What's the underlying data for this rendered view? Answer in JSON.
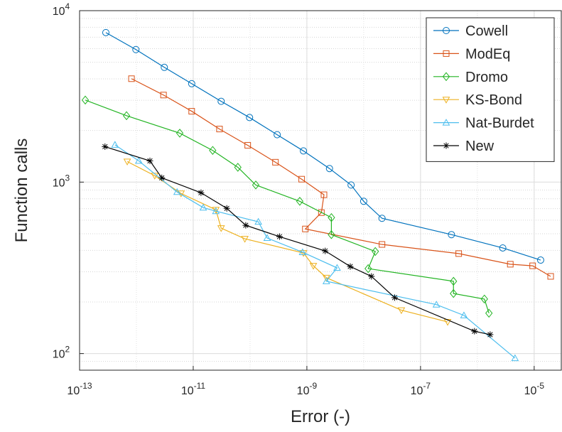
{
  "chart_data": {
    "type": "line",
    "xlabel": "Error (-)",
    "ylabel": "Function calls",
    "xscale": "log",
    "yscale": "log",
    "xlim": [
      1e-13,
      3e-05
    ],
    "ylim": [
      80,
      10000
    ],
    "xticks": [
      {
        "value": 1e-13,
        "label": "10^-13"
      },
      {
        "value": 1e-11,
        "label": "10^-11"
      },
      {
        "value": 1e-09,
        "label": "10^-9"
      },
      {
        "value": 1e-07,
        "label": "10^-7"
      },
      {
        "value": 1e-05,
        "label": "10^-5"
      }
    ],
    "yticks": [
      {
        "value": 100,
        "label": "10^2"
      },
      {
        "value": 1000,
        "label": "10^3"
      },
      {
        "value": 10000,
        "label": "10^4"
      }
    ],
    "grid": true,
    "minor_grid": true,
    "legend": "upper right",
    "series": [
      {
        "name": "Cowell",
        "color": "#0072bd",
        "marker": "circle",
        "x": [
          2.9e-13,
          9.8e-13,
          3.1e-12,
          9.4e-12,
          3.1e-11,
          9.8e-11,
          3e-10,
          8.7e-10,
          2.5e-09,
          6e-09,
          1e-08,
          2.1e-08,
          3.5e-07,
          2.8e-06,
          1.3e-05
        ],
        "values": [
          7450,
          5930,
          4670,
          3750,
          2960,
          2380,
          1890,
          1520,
          1200,
          962,
          773,
          615,
          494,
          413,
          351
        ]
      },
      {
        "name": "ModEq",
        "color": "#d95319",
        "marker": "square",
        "x": [
          8.2e-13,
          3e-12,
          9.4e-12,
          2.9e-11,
          9.1e-11,
          2.8e-10,
          8.1e-10,
          2e-09,
          1.8e-09,
          9.4e-10,
          2.1e-08,
          4.7e-07,
          3.8e-06,
          9.4e-06,
          1.95e-05
        ],
        "values": [
          4010,
          3220,
          2590,
          2040,
          1640,
          1306,
          1040,
          844,
          664,
          533,
          433,
          383,
          332,
          325,
          282
        ]
      },
      {
        "name": "Dromo",
        "color": "#22b422",
        "marker": "diamond",
        "x": [
          1.26e-13,
          6.7e-13,
          5.8e-12,
          2.2e-11,
          6.1e-11,
          1.26e-10,
          7.5e-10,
          2.7e-09,
          2.7e-09,
          1.6e-08,
          1.2e-08,
          3.8e-07,
          3.8e-07,
          1.33e-06,
          1.6e-06
        ],
        "values": [
          3010,
          2440,
          1930,
          1530,
          1220,
          962,
          773,
          621,
          494,
          394,
          313,
          264,
          224,
          208,
          172
        ]
      },
      {
        "name": "KS-Bond",
        "color": "#edb120",
        "marker": "triangle-down",
        "x": [
          6.9e-13,
          2.1e-12,
          6.1e-12,
          2.5e-11,
          3.1e-11,
          8.1e-11,
          8.7e-10,
          1.3e-09,
          2.2e-09,
          4.6e-08,
          3e-07
        ],
        "values": [
          1318,
          1090,
          859,
          690,
          539,
          467,
          386,
          325,
          277,
          179,
          153
        ]
      },
      {
        "name": "Nat-Burdet",
        "color": "#4dbeee",
        "marker": "triangle-up",
        "x": [
          4.2e-13,
          1.1e-12,
          5.2e-12,
          1.5e-11,
          2.5e-11,
          1.4e-10,
          2e-10,
          8.4e-10,
          3.4e-09,
          2.2e-09,
          1.9e-07,
          5.8e-07,
          4.6e-06
        ],
        "values": [
          1650,
          1330,
          875,
          710,
          677,
          587,
          472,
          390,
          316,
          264,
          193,
          167,
          94
        ]
      },
      {
        "name": "New",
        "color": "#000000",
        "marker": "asterisk",
        "x": [
          2.8e-13,
          1.73e-12,
          2.8e-12,
          1.37e-11,
          3.9e-11,
          8.4e-11,
          3.3e-10,
          2.1e-09,
          5.8e-09,
          1.37e-08,
          3.5e-08,
          8.9e-07,
          1.68e-06
        ],
        "values": [
          1610,
          1330,
          1059,
          867,
          703,
          560,
          481,
          397,
          322,
          282,
          212,
          135,
          129
        ]
      }
    ]
  }
}
